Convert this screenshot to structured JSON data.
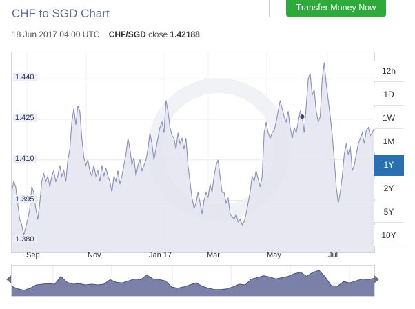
{
  "header": {
    "title": "CHF to SGD Chart",
    "cta_label": "Transfer Money Now"
  },
  "quote": {
    "datetime": "18 Jun 2017 04:00 UTC",
    "pair": "CHF/SGD",
    "close_label": "close",
    "close_value": "1.42188"
  },
  "ranges": [
    "12h",
    "1D",
    "1W",
    "1M",
    "1Y",
    "2Y",
    "5Y",
    "10Y"
  ],
  "active_range": "1Y",
  "colors": {
    "accent": "#2a6fb0",
    "cta": "#2eaa3c",
    "line": "#8a90b8",
    "fill": "#e3e4ef"
  },
  "chart_data": {
    "type": "area",
    "title": "",
    "xlabel": "",
    "ylabel": "",
    "ylim": [
      1.377,
      1.4485
    ],
    "y_ticks": [
      "1.440",
      "1.425",
      "1.410",
      "1.395",
      "1.380"
    ],
    "x_ticks": [
      "Sep",
      "Nov",
      "Jan 17",
      "Mar",
      "May",
      "Jul"
    ],
    "series": [
      {
        "values": [
          1.398,
          1.402,
          1.4,
          1.394,
          1.388,
          1.386,
          1.382,
          1.385,
          1.388,
          1.392,
          1.4,
          1.398,
          1.392,
          1.388,
          1.394,
          1.402,
          1.405,
          1.402,
          1.404,
          1.4,
          1.404,
          1.406,
          1.402,
          1.404,
          1.408,
          1.404,
          1.406,
          1.402,
          1.41,
          1.414,
          1.424,
          1.429,
          1.423,
          1.43,
          1.428,
          1.418,
          1.411,
          1.408,
          1.41,
          1.406,
          1.404,
          1.408,
          1.404,
          1.406,
          1.402,
          1.408,
          1.404,
          1.407,
          1.404,
          1.402,
          1.398,
          1.404,
          1.402,
          1.406,
          1.401,
          1.404,
          1.408,
          1.412,
          1.418,
          1.414,
          1.408,
          1.411,
          1.404,
          1.408,
          1.41,
          1.406,
          1.408,
          1.41,
          1.414,
          1.42,
          1.416,
          1.41,
          1.414,
          1.418,
          1.422,
          1.424,
          1.42,
          1.432,
          1.428,
          1.422,
          1.419,
          1.418,
          1.414,
          1.42,
          1.416,
          1.418,
          1.414,
          1.418,
          1.408,
          1.402,
          1.396,
          1.392,
          1.394,
          1.398,
          1.394,
          1.39,
          1.395,
          1.398,
          1.396,
          1.401,
          1.398,
          1.404,
          1.408,
          1.41,
          1.404,
          1.398,
          1.398,
          1.394,
          1.396,
          1.39,
          1.389,
          1.388,
          1.39,
          1.387,
          1.388,
          1.386,
          1.387,
          1.39,
          1.394,
          1.398,
          1.404,
          1.402,
          1.406,
          1.403,
          1.4,
          1.404,
          1.42,
          1.424,
          1.42,
          1.418,
          1.42,
          1.421,
          1.424,
          1.428,
          1.432,
          1.429,
          1.426,
          1.424,
          1.428,
          1.422,
          1.418,
          1.422,
          1.42,
          1.424,
          1.428,
          1.426,
          1.42,
          1.43,
          1.44,
          1.442,
          1.434,
          1.436,
          1.428,
          1.424,
          1.426,
          1.44,
          1.446,
          1.438,
          1.432,
          1.426,
          1.419,
          1.41,
          1.4,
          1.394,
          1.398,
          1.404,
          1.412,
          1.416,
          1.412,
          1.415,
          1.406,
          1.408,
          1.412,
          1.416,
          1.418,
          1.42,
          1.416,
          1.421,
          1.422,
          1.419,
          1.42,
          1.4219
        ]
      }
    ]
  },
  "navigator": {
    "values": [
      1.398,
      1.39,
      1.386,
      1.392,
      1.402,
      1.404,
      1.406,
      1.404,
      1.428,
      1.41,
      1.404,
      1.406,
      1.402,
      1.404,
      1.402,
      1.404,
      1.418,
      1.41,
      1.408,
      1.414,
      1.42,
      1.418,
      1.432,
      1.42,
      1.418,
      1.414,
      1.396,
      1.392,
      1.396,
      1.402,
      1.408,
      1.398,
      1.392,
      1.388,
      1.388,
      1.39,
      1.396,
      1.404,
      1.402,
      1.42,
      1.424,
      1.43,
      1.426,
      1.42,
      1.424,
      1.428,
      1.436,
      1.44,
      1.428,
      1.44,
      1.446,
      1.426,
      1.4,
      1.398,
      1.412,
      1.408,
      1.414,
      1.42,
      1.418,
      1.4219
    ]
  }
}
